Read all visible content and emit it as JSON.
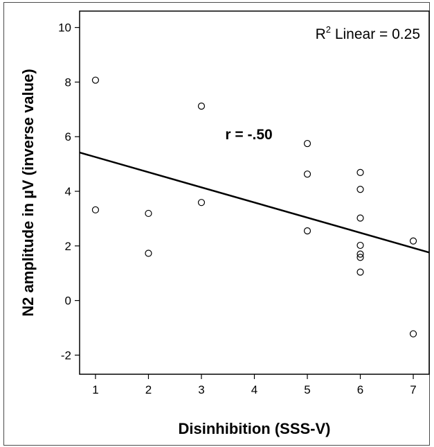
{
  "chart_data": {
    "type": "scatter",
    "title": "",
    "xlabel": "Disinhibition (SSS-V)",
    "ylabel": "N2 amplitude in µV (inverse value)",
    "xlim": [
      0.7,
      7.3
    ],
    "ylim": [
      -2.7,
      10.6
    ],
    "x_ticks": [
      "1",
      "2",
      "3",
      "4",
      "5",
      "6",
      "7"
    ],
    "y_ticks": [
      "-2",
      "0",
      "2",
      "4",
      "6",
      "8",
      "10"
    ],
    "grid": false,
    "points": [
      {
        "x": 1,
        "y": 8.07
      },
      {
        "x": 1,
        "y": 3.32
      },
      {
        "x": 2,
        "y": 3.19
      },
      {
        "x": 2,
        "y": 1.73
      },
      {
        "x": 3,
        "y": 7.12
      },
      {
        "x": 3,
        "y": 3.59
      },
      {
        "x": 5,
        "y": 5.75
      },
      {
        "x": 5,
        "y": 4.63
      },
      {
        "x": 5,
        "y": 2.55
      },
      {
        "x": 6,
        "y": 4.69
      },
      {
        "x": 6,
        "y": 4.07
      },
      {
        "x": 6,
        "y": 3.02
      },
      {
        "x": 6,
        "y": 2.02
      },
      {
        "x": 6,
        "y": 1.7
      },
      {
        "x": 6,
        "y": 1.58
      },
      {
        "x": 6,
        "y": 1.04
      },
      {
        "x": 7,
        "y": 2.18
      },
      {
        "x": 7,
        "y": -1.22
      }
    ],
    "fit_line": {
      "x0": 0.7,
      "y0": 5.42,
      "x1": 7.3,
      "y1": 1.76
    },
    "annotations": {
      "r2_prefix": "R",
      "r2_sup": "2",
      "r2_suffix": " Linear = 0.25",
      "r_text": "r = -.50",
      "r_pos": {
        "x": 3.45,
        "y": 5.9
      }
    }
  }
}
